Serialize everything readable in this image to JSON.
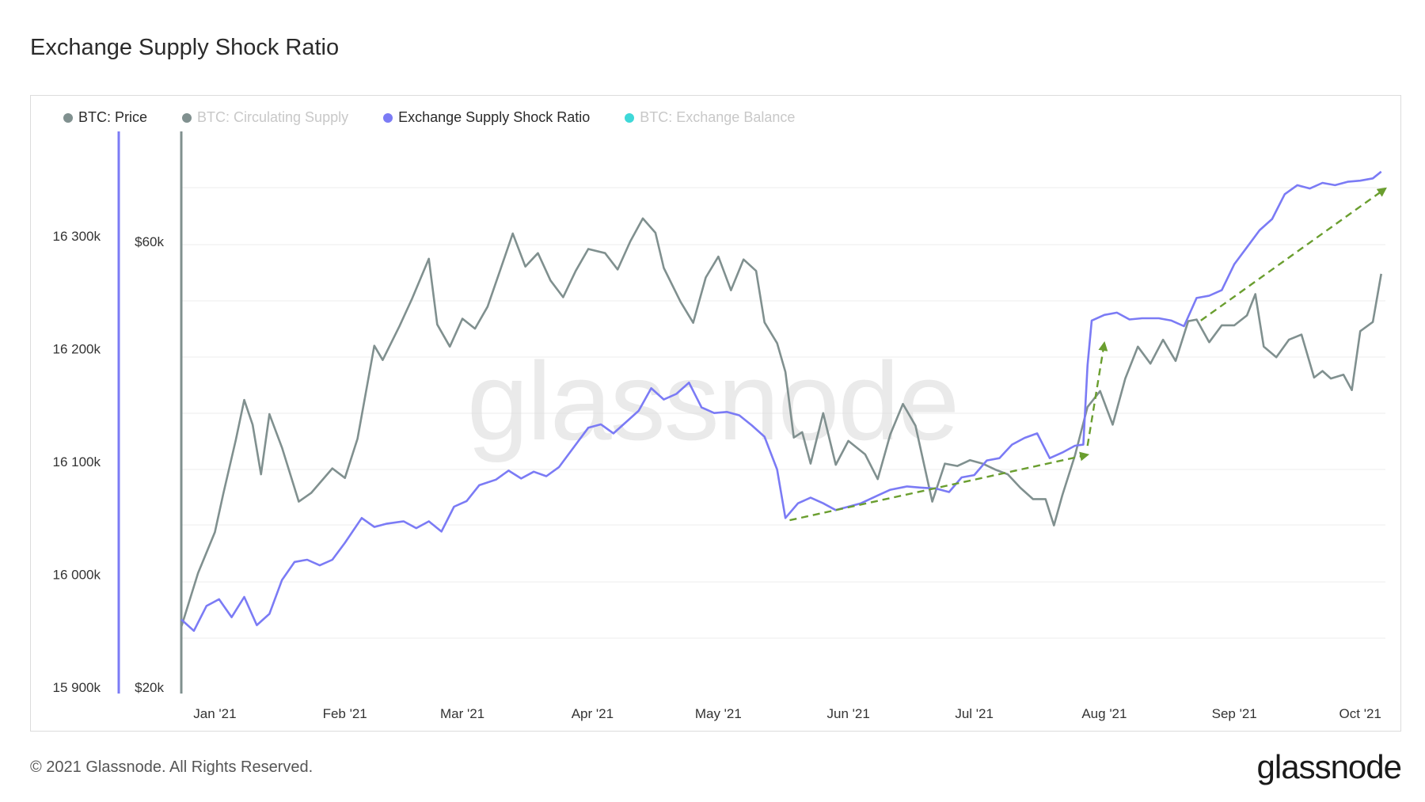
{
  "title": "Exchange Supply Shock Ratio",
  "legend": [
    {
      "label": "BTC: Price",
      "color": "#80908f",
      "active": true
    },
    {
      "label": "BTC: Circulating Supply",
      "color": "#80908f",
      "active": false
    },
    {
      "label": "Exchange Supply Shock Ratio",
      "color": "#7b7bf5",
      "active": true
    },
    {
      "label": "BTC: Exchange Balance",
      "color": "#3ed8d8",
      "active": false
    }
  ],
  "footer": "© 2021 Glassnode. All Rights Reserved.",
  "brand": "glassnode",
  "watermark": "glassnode",
  "chart_data": {
    "type": "line",
    "x_ticks": [
      "Jan '21",
      "Feb '21",
      "Mar '21",
      "Apr '21",
      "May '21",
      "Jun '21",
      "Jul '21",
      "Aug '21",
      "Sep '21",
      "Oct '21"
    ],
    "x_range": [
      "2020-12-24",
      "2021-10-07"
    ],
    "left_axis": {
      "ticks": [
        "16 300k",
        "16 200k",
        "16 100k",
        "16 000k",
        "15 900k"
      ],
      "values": [
        16300000,
        16200000,
        16100000,
        16000000,
        15900000
      ],
      "color": "#7b7bf5"
    },
    "price_axis": {
      "ticks": [
        "$60k",
        "$20k"
      ],
      "values": [
        60000,
        20000
      ],
      "scale": "log",
      "color": "#80908f"
    },
    "series": [
      {
        "name": "BTC: Price",
        "color": "#80908f",
        "points": [
          [
            "2020-12-24",
            23200
          ],
          [
            "2020-12-28",
            26500
          ],
          [
            "2021-01-01",
            29300
          ],
          [
            "2021-01-03",
            32200
          ],
          [
            "2021-01-06",
            36800
          ],
          [
            "2021-01-08",
            40600
          ],
          [
            "2021-01-10",
            38200
          ],
          [
            "2021-01-12",
            33800
          ],
          [
            "2021-01-14",
            39200
          ],
          [
            "2021-01-17",
            36100
          ],
          [
            "2021-01-21",
            31600
          ],
          [
            "2021-01-24",
            32300
          ],
          [
            "2021-01-29",
            34300
          ],
          [
            "2021-02-01",
            33500
          ],
          [
            "2021-02-04",
            36900
          ],
          [
            "2021-02-08",
            46400
          ],
          [
            "2021-02-10",
            44800
          ],
          [
            "2021-02-14",
            48700
          ],
          [
            "2021-02-17",
            52100
          ],
          [
            "2021-02-21",
            57500
          ],
          [
            "2021-02-23",
            48900
          ],
          [
            "2021-02-26",
            46300
          ],
          [
            "2021-03-01",
            49600
          ],
          [
            "2021-03-04",
            48400
          ],
          [
            "2021-03-07",
            51100
          ],
          [
            "2021-03-10",
            55900
          ],
          [
            "2021-03-13",
            61200
          ],
          [
            "2021-03-16",
            56400
          ],
          [
            "2021-03-19",
            58300
          ],
          [
            "2021-03-22",
            54500
          ],
          [
            "2021-03-25",
            52300
          ],
          [
            "2021-03-28",
            55800
          ],
          [
            "2021-03-31",
            58900
          ],
          [
            "2021-04-04",
            58300
          ],
          [
            "2021-04-07",
            56000
          ],
          [
            "2021-04-10",
            60000
          ],
          [
            "2021-04-13",
            63500
          ],
          [
            "2021-04-16",
            61300
          ],
          [
            "2021-04-18",
            56200
          ],
          [
            "2021-04-22",
            51700
          ],
          [
            "2021-04-25",
            49100
          ],
          [
            "2021-04-28",
            54900
          ],
          [
            "2021-05-01",
            57800
          ],
          [
            "2021-05-04",
            53200
          ],
          [
            "2021-05-07",
            57400
          ],
          [
            "2021-05-10",
            55800
          ],
          [
            "2021-05-12",
            49150
          ],
          [
            "2021-05-15",
            46700
          ],
          [
            "2021-05-17",
            43500
          ],
          [
            "2021-05-19",
            37000
          ],
          [
            "2021-05-21",
            37500
          ],
          [
            "2021-05-23",
            34700
          ],
          [
            "2021-05-26",
            39300
          ],
          [
            "2021-05-29",
            34600
          ],
          [
            "2021-06-01",
            36700
          ],
          [
            "2021-06-05",
            35500
          ],
          [
            "2021-06-08",
            33400
          ],
          [
            "2021-06-11",
            37300
          ],
          [
            "2021-06-14",
            40200
          ],
          [
            "2021-06-17",
            38100
          ],
          [
            "2021-06-21",
            31600
          ],
          [
            "2021-06-24",
            34700
          ],
          [
            "2021-06-27",
            34500
          ],
          [
            "2021-06-30",
            35000
          ],
          [
            "2021-07-03",
            34700
          ],
          [
            "2021-07-06",
            34200
          ],
          [
            "2021-07-09",
            33800
          ],
          [
            "2021-07-12",
            32700
          ],
          [
            "2021-07-15",
            31800
          ],
          [
            "2021-07-18",
            31800
          ],
          [
            "2021-07-20",
            29800
          ],
          [
            "2021-07-22",
            32100
          ],
          [
            "2021-07-25",
            35400
          ],
          [
            "2021-07-28",
            39900
          ],
          [
            "2021-07-31",
            41500
          ],
          [
            "2021-08-03",
            38200
          ],
          [
            "2021-08-06",
            42800
          ],
          [
            "2021-08-09",
            46300
          ],
          [
            "2021-08-12",
            44400
          ],
          [
            "2021-08-15",
            47100
          ],
          [
            "2021-08-18",
            44700
          ],
          [
            "2021-08-21",
            49300
          ],
          [
            "2021-08-23",
            49500
          ],
          [
            "2021-08-26",
            46800
          ],
          [
            "2021-08-29",
            48800
          ],
          [
            "2021-09-01",
            48800
          ],
          [
            "2021-09-04",
            50000
          ],
          [
            "2021-09-06",
            52700
          ],
          [
            "2021-09-08",
            46300
          ],
          [
            "2021-09-11",
            45100
          ],
          [
            "2021-09-14",
            47100
          ],
          [
            "2021-09-17",
            47700
          ],
          [
            "2021-09-20",
            42900
          ],
          [
            "2021-09-22",
            43600
          ],
          [
            "2021-09-24",
            42800
          ],
          [
            "2021-09-27",
            43200
          ],
          [
            "2021-09-29",
            41600
          ],
          [
            "2021-10-01",
            48100
          ],
          [
            "2021-10-04",
            49200
          ],
          [
            "2021-10-06",
            55400
          ]
        ]
      },
      {
        "name": "Exchange Supply Shock Ratio",
        "color": "#7b7bf5",
        "points": [
          [
            "2020-12-24",
            15960000
          ],
          [
            "2020-12-27",
            15950000
          ],
          [
            "2020-12-30",
            15972000
          ],
          [
            "2021-01-02",
            15978000
          ],
          [
            "2021-01-05",
            15962000
          ],
          [
            "2021-01-08",
            15980000
          ],
          [
            "2021-01-11",
            15955000
          ],
          [
            "2021-01-14",
            15965000
          ],
          [
            "2021-01-17",
            15995000
          ],
          [
            "2021-01-20",
            16011000
          ],
          [
            "2021-01-23",
            16013000
          ],
          [
            "2021-01-26",
            16008000
          ],
          [
            "2021-01-29",
            16013000
          ],
          [
            "2021-02-01",
            16028000
          ],
          [
            "2021-02-05",
            16050000
          ],
          [
            "2021-02-08",
            16042000
          ],
          [
            "2021-02-11",
            16045000
          ],
          [
            "2021-02-15",
            16047000
          ],
          [
            "2021-02-18",
            16041000
          ],
          [
            "2021-02-21",
            16047000
          ],
          [
            "2021-02-24",
            16038000
          ],
          [
            "2021-02-27",
            16060000
          ],
          [
            "2021-03-02",
            16065000
          ],
          [
            "2021-03-05",
            16079000
          ],
          [
            "2021-03-09",
            16084000
          ],
          [
            "2021-03-12",
            16092000
          ],
          [
            "2021-03-15",
            16085000
          ],
          [
            "2021-03-18",
            16091000
          ],
          [
            "2021-03-21",
            16087000
          ],
          [
            "2021-03-24",
            16095000
          ],
          [
            "2021-03-28",
            16115000
          ],
          [
            "2021-03-31",
            16130000
          ],
          [
            "2021-04-03",
            16133000
          ],
          [
            "2021-04-06",
            16125000
          ],
          [
            "2021-04-09",
            16135000
          ],
          [
            "2021-04-12",
            16145000
          ],
          [
            "2021-04-15",
            16165000
          ],
          [
            "2021-04-18",
            16155000
          ],
          [
            "2021-04-21",
            16160000
          ],
          [
            "2021-04-24",
            16170000
          ],
          [
            "2021-04-27",
            16148000
          ],
          [
            "2021-04-30",
            16143000
          ],
          [
            "2021-05-03",
            16144000
          ],
          [
            "2021-05-06",
            16141000
          ],
          [
            "2021-05-09",
            16132000
          ],
          [
            "2021-05-12",
            16122000
          ],
          [
            "2021-05-15",
            16093000
          ],
          [
            "2021-05-17",
            16050000
          ],
          [
            "2021-05-20",
            16063000
          ],
          [
            "2021-05-23",
            16068000
          ],
          [
            "2021-05-26",
            16063000
          ],
          [
            "2021-05-29",
            16057000
          ],
          [
            "2021-06-01",
            16060000
          ],
          [
            "2021-06-04",
            16063000
          ],
          [
            "2021-06-08",
            16070000
          ],
          [
            "2021-06-11",
            16075000
          ],
          [
            "2021-06-15",
            16078000
          ],
          [
            "2021-06-18",
            16077000
          ],
          [
            "2021-06-22",
            16076000
          ],
          [
            "2021-06-25",
            16073000
          ],
          [
            "2021-06-28",
            16086000
          ],
          [
            "2021-07-01",
            16088000
          ],
          [
            "2021-07-04",
            16101000
          ],
          [
            "2021-07-07",
            16103000
          ],
          [
            "2021-07-10",
            16115000
          ],
          [
            "2021-07-13",
            16121000
          ],
          [
            "2021-07-16",
            16125000
          ],
          [
            "2021-07-19",
            16103000
          ],
          [
            "2021-07-22",
            16108000
          ],
          [
            "2021-07-25",
            16114000
          ],
          [
            "2021-07-27",
            16115000
          ],
          [
            "2021-07-28",
            16185000
          ],
          [
            "2021-07-29",
            16225000
          ],
          [
            "2021-08-01",
            16230000
          ],
          [
            "2021-08-04",
            16232000
          ],
          [
            "2021-08-07",
            16226000
          ],
          [
            "2021-08-10",
            16227000
          ],
          [
            "2021-08-14",
            16227000
          ],
          [
            "2021-08-17",
            16225000
          ],
          [
            "2021-08-20",
            16220000
          ],
          [
            "2021-08-23",
            16245000
          ],
          [
            "2021-08-26",
            16247000
          ],
          [
            "2021-08-29",
            16252000
          ],
          [
            "2021-09-01",
            16275000
          ],
          [
            "2021-09-04",
            16290000
          ],
          [
            "2021-09-07",
            16305000
          ],
          [
            "2021-09-10",
            16315000
          ],
          [
            "2021-09-13",
            16337000
          ],
          [
            "2021-09-16",
            16345000
          ],
          [
            "2021-09-19",
            16342000
          ],
          [
            "2021-09-22",
            16347000
          ],
          [
            "2021-09-25",
            16345000
          ],
          [
            "2021-09-28",
            16348000
          ],
          [
            "2021-10-01",
            16349000
          ],
          [
            "2021-10-04",
            16351000
          ],
          [
            "2021-10-06",
            16357000
          ]
        ]
      }
    ],
    "annotations": [
      {
        "type": "arrow",
        "style": "dashed",
        "color": "#6a9e2f",
        "from": [
          "2021-05-18",
          16048000
        ],
        "to": [
          "2021-07-28",
          16106000
        ]
      },
      {
        "type": "arrow",
        "style": "dashed",
        "color": "#6a9e2f",
        "from": [
          "2021-07-28",
          16114000
        ],
        "to": [
          "2021-08-01",
          16205000
        ]
      },
      {
        "type": "arrow",
        "style": "dashed",
        "color": "#6a9e2f",
        "from": [
          "2021-08-24",
          16225000
        ],
        "to": [
          "2021-10-07",
          16342000
        ]
      }
    ],
    "grid": true
  }
}
